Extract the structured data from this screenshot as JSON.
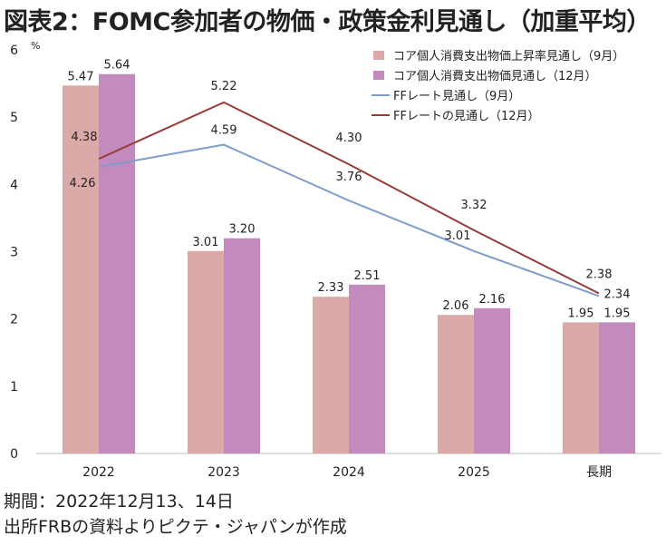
{
  "title": "図表2：FOMC参加者の物価・政策金利見通し（加重平均）",
  "unit_label": "%",
  "footnote_period": "期間：2022年12月13、14日",
  "footnote_source": "出所FRBの資料よりピクテ・ジャパンが作成",
  "chart_data": {
    "type": "bar",
    "categories": [
      "2022",
      "2023",
      "2024",
      "2025",
      "長期"
    ],
    "ylim": [
      0,
      6
    ],
    "yticks": [
      "0",
      "1",
      "2",
      "3",
      "4",
      "5",
      "6"
    ],
    "series": [
      {
        "name": "コア個人消費支出物価上昇率見通し（9月）",
        "type": "bar",
        "color": "#dbaaa8",
        "values": [
          5.47,
          3.01,
          2.33,
          2.06,
          1.95
        ],
        "labels": [
          "5.47",
          "3.01",
          "2.33",
          "2.06",
          "1.95"
        ]
      },
      {
        "name": "コア個人消費支出物価見通し（12月）",
        "type": "bar",
        "color": "#c38bbd",
        "values": [
          5.64,
          3.2,
          2.51,
          2.16,
          1.95
        ],
        "labels": [
          "5.64",
          "3.20",
          "2.51",
          "2.16",
          "1.95"
        ]
      },
      {
        "name": "FFレート見通し（9月）",
        "type": "line",
        "color": "#7e9bcb",
        "values": [
          4.26,
          4.59,
          3.76,
          3.01,
          2.34
        ],
        "labels": [
          "4.26",
          "4.59",
          "3.76",
          "3.01",
          "2.34"
        ]
      },
      {
        "name": "FFレートの見通し（12月）",
        "type": "line",
        "color": "#9a3a3a",
        "values": [
          4.38,
          5.22,
          4.3,
          3.32,
          2.38
        ],
        "labels": [
          "4.38",
          "5.22",
          "4.30",
          "3.32",
          "2.38"
        ]
      }
    ],
    "grid": false,
    "legend_position": "top-right"
  }
}
